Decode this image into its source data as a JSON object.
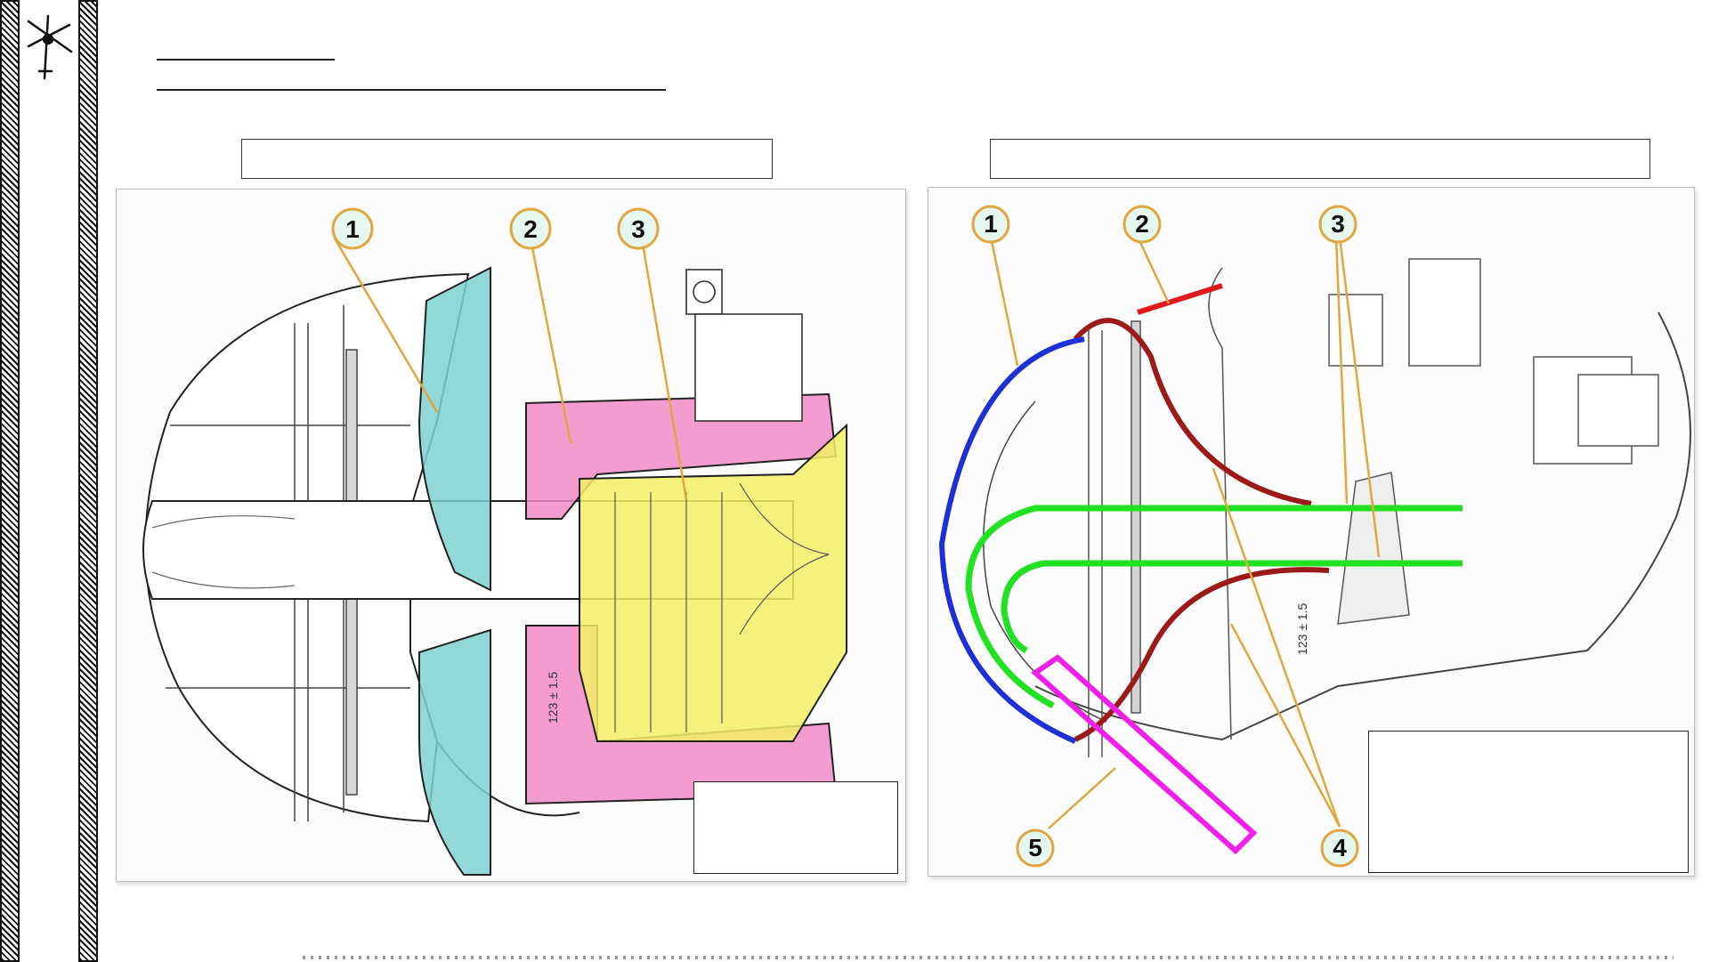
{
  "page": {
    "footer_visible": true
  },
  "left_panel": {
    "dimension_label": "123 ± 1.5",
    "callouts": [
      {
        "label": "1",
        "name": "callout-1"
      },
      {
        "label": "2",
        "name": "callout-2"
      },
      {
        "label": "3",
        "name": "callout-3"
      }
    ],
    "region_colors": {
      "1": "#7fd1cf",
      "2": "#f28ac8",
      "3": "#f2f066"
    }
  },
  "right_panel": {
    "dimension_label": "123 ± 1.5",
    "callouts": [
      {
        "label": "1",
        "name": "callout-1"
      },
      {
        "label": "2",
        "name": "callout-2"
      },
      {
        "label": "3",
        "name": "callout-3"
      },
      {
        "label": "4",
        "name": "callout-4"
      },
      {
        "label": "5",
        "name": "callout-5"
      }
    ],
    "path_colors": {
      "1": "#1f2fd6",
      "2": "#e0191c",
      "3": "#22e022",
      "4": "#9c1a1a",
      "5": "#ef1fe8"
    }
  },
  "colors": {
    "callout_fill": "#e6f7f0",
    "callout_stroke": "#e0a640",
    "leader": "#e0a640"
  }
}
